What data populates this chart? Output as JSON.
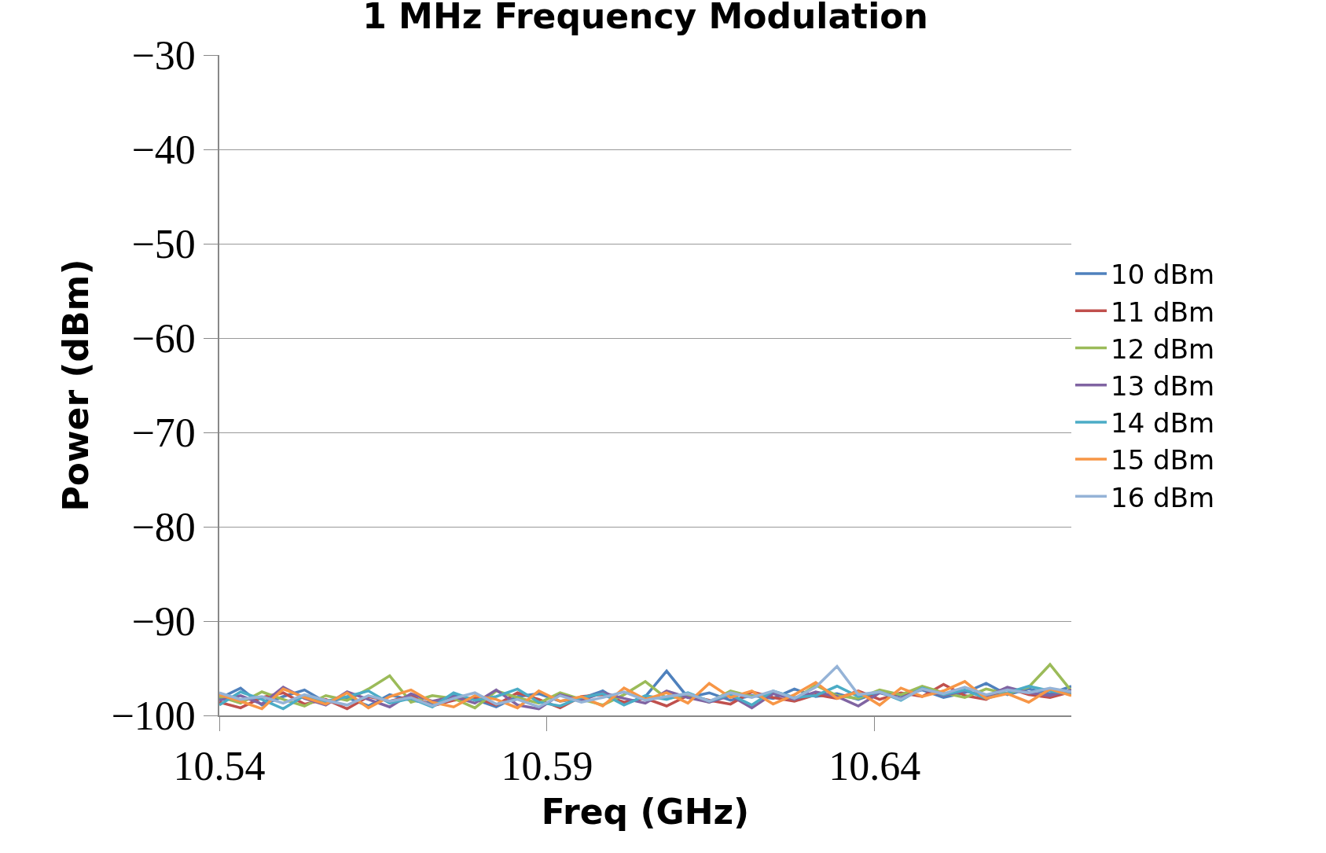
{
  "chart_data": {
    "type": "line",
    "title": "1 MHz Frequency Modulation",
    "xlabel": "Freq (GHz)",
    "ylabel": "Power (dBm)",
    "x": [
      10.54,
      10.54325,
      10.5465,
      10.54975,
      10.553,
      10.55625,
      10.5595,
      10.56275,
      10.566,
      10.56925,
      10.5725,
      10.57575,
      10.579,
      10.58225,
      10.5855,
      10.58875,
      10.592,
      10.59525,
      10.5985,
      10.60175,
      10.605,
      10.60825,
      10.6115,
      10.61475,
      10.618,
      10.62125,
      10.6245,
      10.62775,
      10.631,
      10.63425,
      10.6375,
      10.64075,
      10.644,
      10.64725,
      10.6505,
      10.65375,
      10.657,
      10.66025,
      10.6635,
      10.66675,
      10.67
    ],
    "series": [
      {
        "name": "10 dBm",
        "color": "#4f81bd",
        "values": [
          -98.2,
          -97.1,
          -98.9,
          -98.0,
          -97.3,
          -98.6,
          -98.1,
          -99.0,
          -97.8,
          -98.4,
          -98.7,
          -97.9,
          -98.3,
          -99.1,
          -98.0,
          -97.7,
          -98.5,
          -98.2,
          -97.4,
          -98.8,
          -98.0,
          -95.3,
          -98.1,
          -97.6,
          -98.4,
          -97.9,
          -98.2,
          -97.2,
          -98.0,
          -97.7,
          -98.3,
          -97.5,
          -97.9,
          -97.3,
          -98.1,
          -97.6,
          -96.6,
          -97.8,
          -97.2,
          -97.7,
          -96.9
        ]
      },
      {
        "name": "11 dBm",
        "color": "#c0504d",
        "values": [
          -98.6,
          -99.2,
          -98.1,
          -97.6,
          -98.8,
          -98.3,
          -99.3,
          -98.0,
          -98.5,
          -97.9,
          -99.0,
          -98.4,
          -98.1,
          -98.9,
          -97.6,
          -98.3,
          -99.2,
          -98.0,
          -97.8,
          -98.6,
          -98.2,
          -99.0,
          -97.9,
          -98.4,
          -98.8,
          -97.5,
          -98.1,
          -98.5,
          -97.8,
          -98.2,
          -97.4,
          -98.3,
          -97.6,
          -98.0,
          -96.7,
          -97.9,
          -98.3,
          -97.1,
          -97.8,
          -98.1,
          -97.5
        ]
      },
      {
        "name": "12 dBm",
        "color": "#9bbb59",
        "values": [
          -98.0,
          -98.7,
          -97.5,
          -98.3,
          -99.0,
          -97.9,
          -98.4,
          -97.2,
          -95.8,
          -98.6,
          -97.9,
          -98.2,
          -99.2,
          -97.4,
          -98.1,
          -98.7,
          -97.6,
          -98.3,
          -98.9,
          -97.8,
          -96.4,
          -98.2,
          -97.9,
          -98.6,
          -97.4,
          -98.0,
          -97.6,
          -98.3,
          -96.8,
          -97.9,
          -98.2,
          -97.3,
          -97.8,
          -96.9,
          -97.6,
          -98.1,
          -97.2,
          -97.7,
          -97.0,
          -94.6,
          -97.4
        ]
      },
      {
        "name": "13 dBm",
        "color": "#8064a2",
        "values": [
          -98.4,
          -97.9,
          -98.8,
          -97.0,
          -98.2,
          -98.9,
          -97.5,
          -98.3,
          -99.1,
          -97.7,
          -98.5,
          -98.0,
          -98.7,
          -97.3,
          -98.9,
          -99.3,
          -97.8,
          -98.4,
          -97.6,
          -98.2,
          -98.7,
          -97.4,
          -98.1,
          -98.6,
          -97.9,
          -99.2,
          -97.7,
          -98.3,
          -97.5,
          -98.0,
          -99.0,
          -97.6,
          -98.2,
          -97.2,
          -97.9,
          -97.4,
          -98.0,
          -97.0,
          -97.6,
          -97.9,
          -97.3
        ]
      },
      {
        "name": "14 dBm",
        "color": "#4bacc6",
        "values": [
          -98.9,
          -97.5,
          -98.3,
          -99.3,
          -97.9,
          -98.5,
          -98.0,
          -97.4,
          -98.7,
          -98.2,
          -99.1,
          -97.6,
          -98.4,
          -98.0,
          -97.2,
          -98.6,
          -99.0,
          -98.1,
          -97.7,
          -98.9,
          -97.9,
          -98.3,
          -97.6,
          -98.5,
          -97.8,
          -98.9,
          -97.4,
          -98.1,
          -97.9,
          -96.9,
          -98.0,
          -97.5,
          -98.4,
          -97.1,
          -97.8,
          -97.3,
          -98.2,
          -97.6,
          -96.9,
          -97.4,
          -97.8
        ]
      },
      {
        "name": "15 dBm",
        "color": "#f79646",
        "values": [
          -97.8,
          -98.5,
          -99.3,
          -97.2,
          -98.1,
          -98.8,
          -97.6,
          -99.2,
          -98.0,
          -97.3,
          -98.6,
          -99.1,
          -97.9,
          -98.3,
          -99.2,
          -97.4,
          -98.5,
          -98.0,
          -99.0,
          -97.1,
          -98.3,
          -97.6,
          -98.7,
          -96.6,
          -98.1,
          -97.4,
          -98.8,
          -97.8,
          -96.5,
          -98.2,
          -97.5,
          -98.9,
          -97.1,
          -98.0,
          -97.4,
          -96.4,
          -98.2,
          -97.7,
          -98.6,
          -97.2,
          -97.9
        ]
      },
      {
        "name": "16 dBm",
        "color": "#95b3d7",
        "values": [
          -97.6,
          -98.3,
          -98.0,
          -98.7,
          -97.8,
          -98.4,
          -98.9,
          -97.9,
          -98.5,
          -98.1,
          -99.0,
          -98.2,
          -97.6,
          -98.8,
          -98.3,
          -99.1,
          -97.9,
          -98.6,
          -98.1,
          -97.5,
          -98.4,
          -98.0,
          -97.7,
          -98.5,
          -97.6,
          -98.1,
          -97.4,
          -98.2,
          -97.0,
          -94.8,
          -97.8,
          -97.5,
          -98.3,
          -97.2,
          -97.7,
          -97.0,
          -97.8,
          -97.3,
          -97.6,
          -97.1,
          -97.5
        ]
      }
    ],
    "xlim": [
      10.54,
      10.67
    ],
    "xticks": [
      10.54,
      10.59,
      10.64
    ],
    "ylim": [
      -100,
      -30
    ],
    "yticks": [
      {
        "value": -100,
        "label": "−100"
      },
      {
        "value": -90,
        "label": "−90"
      },
      {
        "value": -80,
        "label": "−80"
      },
      {
        "value": -70,
        "label": "−70"
      },
      {
        "value": -60,
        "label": "−60"
      },
      {
        "value": -50,
        "label": "−50"
      },
      {
        "value": -40,
        "label": "−40"
      },
      {
        "value": -30,
        "label": "−30"
      }
    ],
    "grid": "y",
    "legend": "right",
    "marker": "none",
    "line_style": "solid"
  }
}
